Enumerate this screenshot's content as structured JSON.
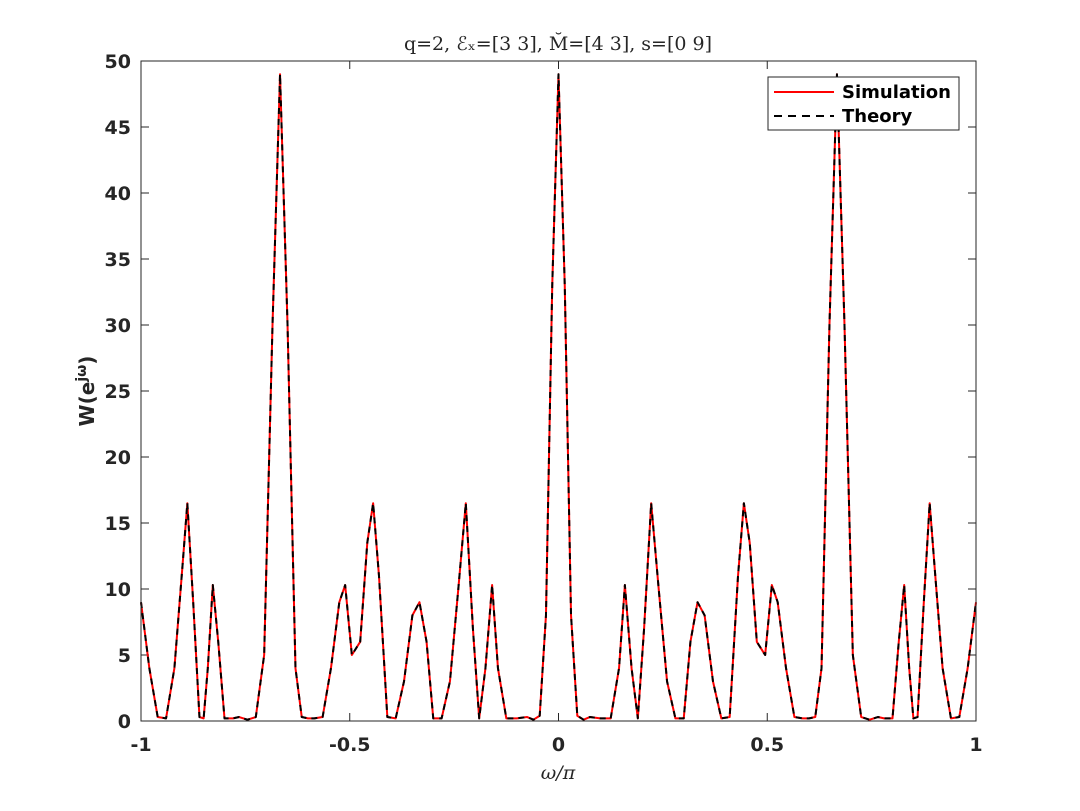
{
  "chart_data": {
    "type": "line",
    "title": "q=2, ℰₓ=[3 3], M̆=[4 3], s=[0 9]",
    "xlabel": "ω/π",
    "ylabel": "W(e^{jω})",
    "ylabel_main": "W(e",
    "ylabel_sup": "jω",
    "ylabel_close": ")",
    "xlim": [
      -1,
      1
    ],
    "ylim": [
      0,
      50
    ],
    "x_ticks": [
      -1,
      -0.5,
      0,
      0.5,
      1
    ],
    "x_tick_labels": [
      "-1",
      "-0.5",
      "0",
      "0.5",
      "1"
    ],
    "y_ticks": [
      0,
      5,
      10,
      15,
      20,
      25,
      30,
      35,
      40,
      45,
      50
    ],
    "y_tick_labels": [
      "0",
      "5",
      "10",
      "15",
      "20",
      "25",
      "30",
      "35",
      "40",
      "45",
      "50"
    ],
    "grid": false,
    "legend_position": "top-right",
    "series": [
      {
        "name": "Simulation",
        "color": "#ff0000",
        "style": "solid",
        "x": [
          -1.0,
          -0.98,
          -0.96,
          -0.94,
          -0.92,
          -0.9,
          -0.889,
          -0.875,
          -0.86,
          -0.85,
          -0.84,
          -0.828,
          -0.815,
          -0.8,
          -0.78,
          -0.765,
          -0.745,
          -0.725,
          -0.705,
          -0.685,
          -0.667,
          -0.649,
          -0.63,
          -0.615,
          -0.6,
          -0.585,
          -0.565,
          -0.545,
          -0.525,
          -0.511,
          -0.495,
          -0.475,
          -0.458,
          -0.444,
          -0.43,
          -0.41,
          -0.39,
          -0.37,
          -0.35,
          -0.333,
          -0.316,
          -0.3,
          -0.28,
          -0.26,
          -0.24,
          -0.222,
          -0.205,
          -0.19,
          -0.175,
          -0.159,
          -0.145,
          -0.125,
          -0.1,
          -0.075,
          -0.06,
          -0.045,
          -0.03,
          -0.015,
          0.0,
          0.015,
          0.03,
          0.045,
          0.06,
          0.075,
          0.1,
          0.125,
          0.145,
          0.159,
          0.175,
          0.19,
          0.205,
          0.222,
          0.24,
          0.26,
          0.28,
          0.3,
          0.316,
          0.333,
          0.35,
          0.37,
          0.39,
          0.41,
          0.43,
          0.444,
          0.458,
          0.475,
          0.495,
          0.511,
          0.525,
          0.545,
          0.565,
          0.585,
          0.6,
          0.615,
          0.63,
          0.649,
          0.667,
          0.685,
          0.705,
          0.725,
          0.745,
          0.765,
          0.78,
          0.8,
          0.815,
          0.828,
          0.84,
          0.85,
          0.86,
          0.875,
          0.889,
          0.9,
          0.92,
          0.94,
          0.96,
          0.98,
          1.0
        ],
        "y": [
          9.0,
          4.0,
          0.3,
          0.2,
          4.0,
          12.0,
          16.5,
          9.0,
          0.3,
          0.2,
          4.0,
          10.3,
          6.0,
          0.2,
          0.2,
          0.3,
          0.1,
          0.3,
          5.0,
          30.0,
          49.0,
          30.0,
          4.0,
          0.3,
          0.2,
          0.2,
          0.3,
          4.0,
          9.0,
          10.3,
          5.0,
          6.0,
          13.5,
          16.5,
          11.0,
          0.3,
          0.2,
          3.0,
          8.0,
          9.0,
          6.0,
          0.2,
          0.2,
          3.0,
          10.0,
          16.5,
          7.0,
          0.2,
          4.0,
          10.3,
          4.0,
          0.2,
          0.2,
          0.3,
          0.1,
          0.4,
          8.0,
          33.0,
          49.0,
          33.0,
          8.0,
          0.4,
          0.1,
          0.3,
          0.2,
          0.2,
          4.0,
          10.3,
          4.0,
          0.2,
          7.0,
          16.5,
          10.0,
          3.0,
          0.2,
          0.2,
          6.0,
          9.0,
          8.0,
          3.0,
          0.2,
          0.3,
          11.0,
          16.5,
          13.5,
          6.0,
          5.0,
          10.3,
          9.0,
          4.0,
          0.3,
          0.2,
          0.2,
          0.3,
          4.0,
          30.0,
          49.0,
          30.0,
          5.0,
          0.3,
          0.1,
          0.3,
          0.2,
          0.2,
          6.0,
          10.3,
          4.0,
          0.2,
          0.3,
          9.0,
          16.5,
          12.0,
          4.0,
          0.2,
          0.3,
          4.0,
          9.0
        ]
      },
      {
        "name": "Theory",
        "color": "#000000",
        "style": "dashed",
        "x": [
          -1.0,
          -0.98,
          -0.96,
          -0.94,
          -0.92,
          -0.9,
          -0.889,
          -0.875,
          -0.86,
          -0.85,
          -0.84,
          -0.828,
          -0.815,
          -0.8,
          -0.78,
          -0.765,
          -0.745,
          -0.725,
          -0.705,
          -0.685,
          -0.667,
          -0.649,
          -0.63,
          -0.615,
          -0.6,
          -0.585,
          -0.565,
          -0.545,
          -0.525,
          -0.511,
          -0.495,
          -0.475,
          -0.458,
          -0.444,
          -0.43,
          -0.41,
          -0.39,
          -0.37,
          -0.35,
          -0.333,
          -0.316,
          -0.3,
          -0.28,
          -0.26,
          -0.24,
          -0.222,
          -0.205,
          -0.19,
          -0.175,
          -0.159,
          -0.145,
          -0.125,
          -0.1,
          -0.075,
          -0.06,
          -0.045,
          -0.03,
          -0.015,
          0.0,
          0.015,
          0.03,
          0.045,
          0.06,
          0.075,
          0.1,
          0.125,
          0.145,
          0.159,
          0.175,
          0.19,
          0.205,
          0.222,
          0.24,
          0.26,
          0.28,
          0.3,
          0.316,
          0.333,
          0.35,
          0.37,
          0.39,
          0.41,
          0.43,
          0.444,
          0.458,
          0.475,
          0.495,
          0.511,
          0.525,
          0.545,
          0.565,
          0.585,
          0.6,
          0.615,
          0.63,
          0.649,
          0.667,
          0.685,
          0.705,
          0.725,
          0.745,
          0.765,
          0.78,
          0.8,
          0.815,
          0.828,
          0.84,
          0.85,
          0.86,
          0.875,
          0.889,
          0.9,
          0.92,
          0.94,
          0.96,
          0.98,
          1.0
        ],
        "y": [
          9.0,
          4.0,
          0.3,
          0.2,
          4.0,
          12.0,
          16.5,
          9.0,
          0.3,
          0.2,
          4.0,
          10.3,
          6.0,
          0.2,
          0.2,
          0.3,
          0.1,
          0.3,
          5.0,
          30.0,
          49.0,
          30.0,
          4.0,
          0.3,
          0.2,
          0.2,
          0.3,
          4.0,
          9.0,
          10.3,
          5.0,
          6.0,
          13.5,
          16.5,
          11.0,
          0.3,
          0.2,
          3.0,
          8.0,
          9.0,
          6.0,
          0.2,
          0.2,
          3.0,
          10.0,
          16.5,
          7.0,
          0.2,
          4.0,
          10.3,
          4.0,
          0.2,
          0.2,
          0.3,
          0.1,
          0.4,
          8.0,
          33.0,
          49.0,
          33.0,
          8.0,
          0.4,
          0.1,
          0.3,
          0.2,
          0.2,
          4.0,
          10.3,
          4.0,
          0.2,
          7.0,
          16.5,
          10.0,
          3.0,
          0.2,
          0.2,
          6.0,
          9.0,
          8.0,
          3.0,
          0.2,
          0.3,
          11.0,
          16.5,
          13.5,
          6.0,
          5.0,
          10.3,
          9.0,
          4.0,
          0.3,
          0.2,
          0.2,
          0.3,
          4.0,
          30.0,
          49.0,
          30.0,
          5.0,
          0.3,
          0.1,
          0.3,
          0.2,
          0.2,
          6.0,
          10.3,
          4.0,
          0.2,
          0.3,
          9.0,
          16.5,
          12.0,
          4.0,
          0.2,
          0.3,
          4.0,
          9.0
        ]
      }
    ]
  }
}
